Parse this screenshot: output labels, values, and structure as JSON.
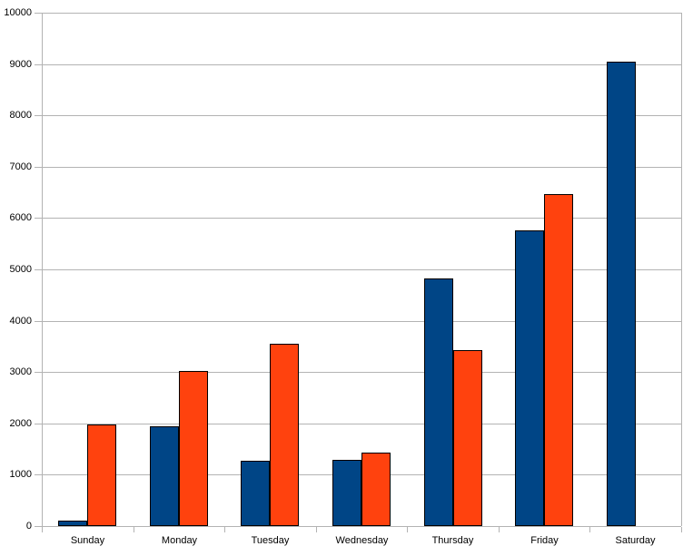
{
  "chart_data": {
    "type": "bar",
    "title": "",
    "xlabel": "",
    "ylabel": "",
    "categories": [
      "Sunday",
      "Monday",
      "Tuesday",
      "Wednesday",
      "Thursday",
      "Friday",
      "Saturday"
    ],
    "series": [
      {
        "id": "series-1",
        "color": "#004586",
        "values": [
          100,
          1940,
          1270,
          1290,
          4820,
          5760,
          9050
        ]
      },
      {
        "id": "series-2",
        "color": "#FF420E",
        "values": [
          1970,
          3030,
          3560,
          1430,
          3420,
          6470,
          null
        ]
      }
    ],
    "ylim": [
      0,
      10000
    ],
    "yticks": [
      0,
      1000,
      2000,
      3000,
      4000,
      5000,
      6000,
      7000,
      8000,
      9000,
      10000
    ],
    "ytick_labels": [
      "0",
      "1000",
      "2000",
      "3000",
      "4000",
      "5000",
      "6000",
      "7000",
      "8000",
      "9000",
      "10000"
    ],
    "grid": true,
    "legend_position": "none"
  },
  "colors": {
    "background": "#ffffff",
    "gridline": "#b3b3b3",
    "axis": "#b3b3b3",
    "bar_border": "#000000",
    "text": "#000000",
    "series_1": "#004586",
    "series_2": "#FF420E"
  }
}
